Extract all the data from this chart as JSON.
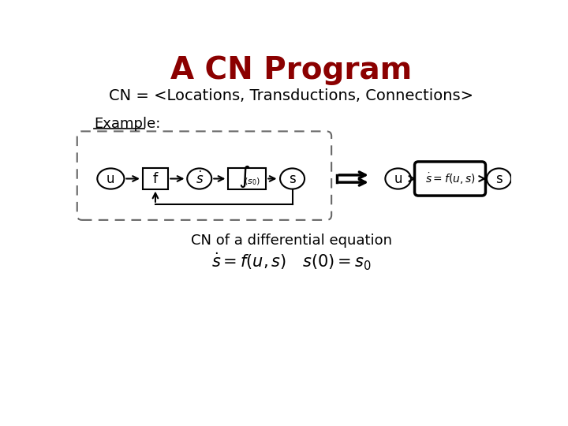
{
  "title": "A CN Program",
  "title_color": "#8B0000",
  "title_fontsize": 28,
  "subtitle": "CN = <Locations, Transductions, Connections>",
  "subtitle_fontsize": 14,
  "example_label": "Example:",
  "caption": "CN of a differential equation",
  "equation": "$\\dot{s} = f(u,s) \\quad s(0) = s_0$",
  "bg_color": "#ffffff",
  "text_color": "#000000"
}
